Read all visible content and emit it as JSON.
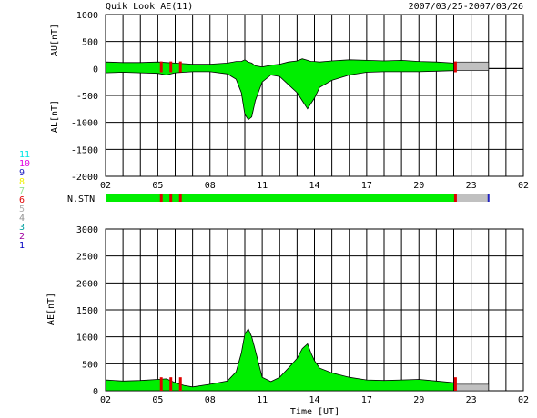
{
  "header": {
    "title": "Quik Look AE(11)",
    "date_range": "2007/03/25-2007/03/26"
  },
  "station_legend": {
    "items": [
      {
        "label": "11",
        "color": "#00e5e5"
      },
      {
        "label": "10",
        "color": "#e000e0"
      },
      {
        "label": "9",
        "color": "#2020c0"
      },
      {
        "label": "8",
        "color": "#f0f000"
      },
      {
        "label": "7",
        "color": "#90e090"
      },
      {
        "label": "6",
        "color": "#e00000"
      },
      {
        "label": "5",
        "color": "#b0b0b0"
      },
      {
        "label": "4",
        "color": "#909090"
      },
      {
        "label": "3",
        "color": "#00a0a0"
      },
      {
        "label": "2",
        "color": "#a000a0"
      },
      {
        "label": "1",
        "color": "#0000c0"
      }
    ]
  },
  "nstn": {
    "label": "N.STN",
    "main_color": "#00ee00",
    "gap_color": "#c0c0c0",
    "red_color": "#e00000",
    "gap_start_hour": 22.1,
    "gap_end_hour": 24.0,
    "red_marks_hours": [
      5.2,
      5.75,
      6.3,
      22.1
    ]
  },
  "chart_data": [
    {
      "type": "area",
      "title": "Quik Look AE(11)",
      "ylabel_top": "AU[nT]",
      "ylabel_bottom": "AL[nT]",
      "ylim": [
        -2000,
        1000
      ],
      "yticks": [
        1000,
        500,
        0,
        -500,
        -1000,
        -1500,
        -2000
      ],
      "xlim": [
        2,
        26
      ],
      "xticks": [
        "02",
        "05",
        "08",
        "11",
        "14",
        "17",
        "20",
        "23",
        "02"
      ],
      "fill_color": "#00ee00",
      "series": [
        {
          "x": [
            2.0,
            3.0,
            4.0,
            5.0,
            5.5,
            6.0,
            7.0,
            8.0,
            9.0,
            9.5,
            9.8,
            10.0,
            10.2,
            10.4,
            10.6,
            11.0,
            11.5,
            12.0,
            12.5,
            13.0,
            13.3,
            13.6,
            13.8,
            14.0,
            14.3,
            15.0,
            16.0,
            17.0,
            18.0,
            19.0,
            20.0,
            21.0,
            22.0
          ],
          "upper": [
            120,
            110,
            110,
            120,
            110,
            100,
            80,
            80,
            100,
            130,
            130,
            160,
            120,
            100,
            50,
            30,
            60,
            80,
            120,
            140,
            180,
            150,
            130,
            130,
            120,
            140,
            160,
            150,
            140,
            150,
            130,
            120,
            100
          ],
          "lower": [
            -80,
            -70,
            -80,
            -90,
            -120,
            -80,
            -60,
            -60,
            -100,
            -200,
            -450,
            -850,
            -950,
            -900,
            -600,
            -250,
            -120,
            -150,
            -300,
            -450,
            -600,
            -750,
            -650,
            -550,
            -350,
            -220,
            -120,
            -70,
            -60,
            -60,
            -60,
            -50,
            -40
          ]
        }
      ]
    },
    {
      "type": "area",
      "ylabel": "AE[nT]",
      "xlabel": "Time [UT]",
      "ylim": [
        0,
        3000
      ],
      "yticks": [
        3000,
        2500,
        2000,
        1500,
        1000,
        500,
        0
      ],
      "xlim": [
        2,
        26
      ],
      "xticks": [
        "02",
        "05",
        "08",
        "11",
        "14",
        "17",
        "20",
        "23",
        "02"
      ],
      "fill_color": "#00ee00",
      "series": [
        {
          "x": [
            2.0,
            3.0,
            4.0,
            5.0,
            5.5,
            6.0,
            6.5,
            7.0,
            8.0,
            9.0,
            9.5,
            9.8,
            10.0,
            10.2,
            10.4,
            10.6,
            11.0,
            11.5,
            12.0,
            12.5,
            13.0,
            13.3,
            13.6,
            13.8,
            14.0,
            14.3,
            15.0,
            16.0,
            17.0,
            18.0,
            19.0,
            20.0,
            21.0,
            22.0
          ],
          "values": [
            200,
            180,
            190,
            210,
            220,
            150,
            100,
            70,
            120,
            180,
            350,
            700,
            1050,
            1150,
            1000,
            750,
            250,
            170,
            250,
            420,
            600,
            780,
            870,
            700,
            560,
            420,
            330,
            250,
            200,
            190,
            200,
            210,
            180,
            150
          ]
        }
      ]
    }
  ]
}
